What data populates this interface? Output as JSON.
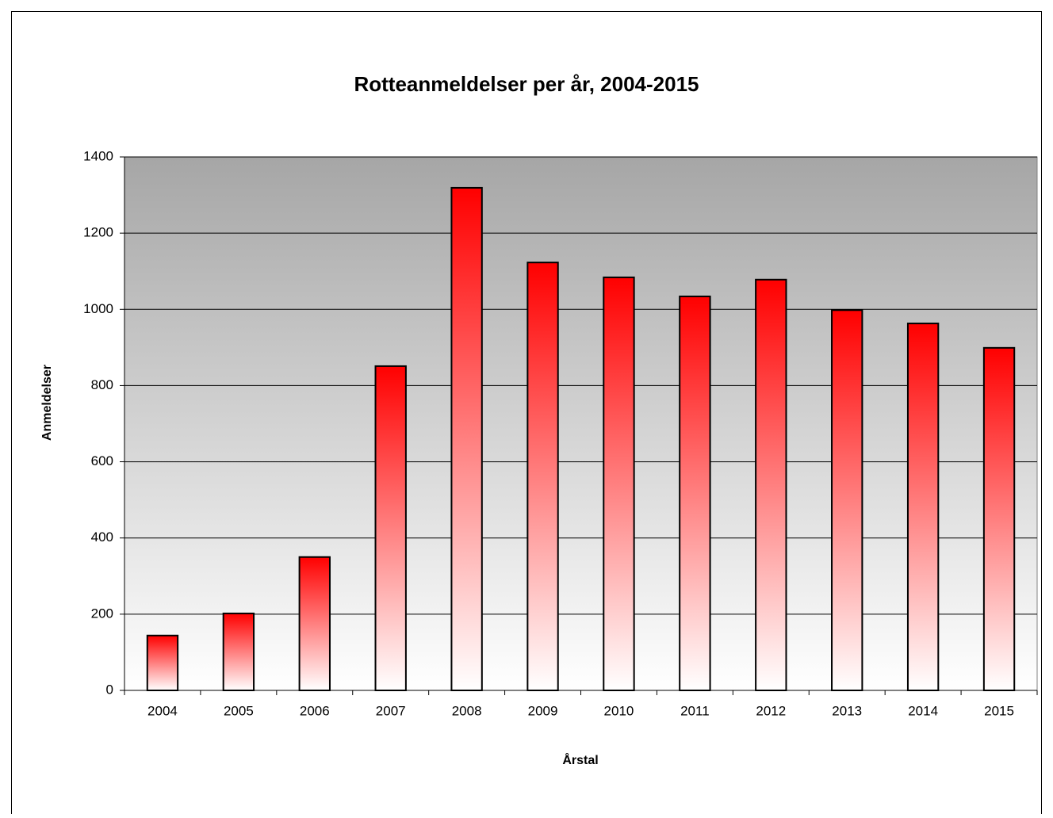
{
  "chart_data": {
    "type": "bar",
    "title": "Rotteanmeldelser per år, 2004-2015",
    "x_label": "Årstal",
    "y_label": "Anmeldelser",
    "categories": [
      "2004",
      "2005",
      "2006",
      "2007",
      "2008",
      "2009",
      "2010",
      "2011",
      "2012",
      "2013",
      "2014",
      "2015"
    ],
    "values": [
      144,
      202,
      350,
      851,
      1319,
      1123,
      1084,
      1034,
      1078,
      998,
      963,
      899
    ],
    "color": "#ff0000",
    "ylim": [
      0,
      1400
    ],
    "yticks": [
      0,
      200,
      400,
      600,
      800,
      1000,
      1200,
      1400
    ],
    "grid": true
  }
}
